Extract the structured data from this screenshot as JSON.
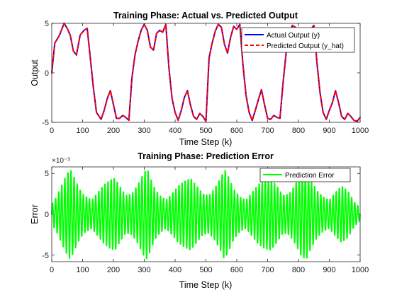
{
  "chart_data": [
    {
      "type": "line",
      "title": "Training Phase: Actual vs. Predicted Output",
      "xlabel": "Time Step (k)",
      "ylabel": "Output",
      "xlim": [
        0,
        1000
      ],
      "ylim": [
        -5,
        5
      ],
      "xticks": [
        "0",
        "100",
        "200",
        "300",
        "400",
        "500",
        "600",
        "700",
        "800",
        "900",
        "1000"
      ],
      "yticks": [
        "5",
        "0",
        "-5"
      ],
      "legend_position": "top-right",
      "grid": false,
      "x": [
        0,
        10,
        25,
        40,
        50,
        60,
        70,
        80,
        92,
        105,
        115,
        125,
        135,
        145,
        160,
        170,
        180,
        190,
        200,
        210,
        220,
        230,
        240,
        250,
        260,
        270,
        280,
        290,
        300,
        310,
        320,
        330,
        340,
        350,
        360,
        370,
        380,
        390,
        400,
        410,
        420,
        430,
        440,
        450,
        460,
        470,
        480,
        490,
        500,
        510,
        520,
        530,
        540,
        550,
        560,
        570,
        580,
        590,
        600,
        610,
        620,
        630,
        640,
        650,
        660,
        670,
        680,
        690,
        700,
        710,
        720,
        730,
        740,
        750,
        760,
        770,
        780,
        790,
        800,
        810,
        820,
        830,
        840,
        850,
        860,
        870,
        880,
        890,
        900,
        910,
        920,
        930,
        940,
        950,
        960,
        970,
        980,
        990,
        1000
      ],
      "series": [
        {
          "name": "Actual Output (y)",
          "color": "#0000ff",
          "style": "solid",
          "values": [
            0,
            3,
            3.8,
            5,
            4.5,
            3.8,
            2.2,
            1.8,
            3.8,
            4.3,
            4.5,
            1.5,
            -1.5,
            -4,
            -4.7,
            -3.8,
            -2.6,
            -1.8,
            -3.2,
            -4.6,
            -4.6,
            -4.3,
            -4.5,
            -4.8,
            -0.5,
            1.8,
            3.2,
            4.3,
            4.9,
            4.3,
            2.6,
            2.3,
            4.0,
            4.3,
            4.1,
            4.9,
            0.5,
            -2.6,
            -4,
            -4.8,
            -3.8,
            -2.5,
            -1.8,
            -3.3,
            -4.4,
            -4.7,
            -4.1,
            -4.4,
            -4.9,
            1.5,
            3.0,
            4.2,
            4.9,
            4.6,
            2.9,
            2.0,
            3.6,
            4.7,
            4.4,
            4.9,
            0.8,
            -2.3,
            -4,
            -4.8,
            -3.8,
            -2.7,
            -1.7,
            -3.2,
            -4.6,
            -4.7,
            -4.3,
            -4.5,
            -4.6,
            -1.0,
            2.0,
            3.5,
            4.8,
            4.6,
            2.8,
            2.3,
            3.6,
            4.3,
            4.4,
            4.8,
            1.0,
            -2.0,
            -4,
            -4.7,
            -3.8,
            -3.0,
            -1.8,
            -3.0,
            -4.4,
            -4.7,
            -4.1,
            -4.4,
            -4.8,
            -4.9,
            -4.5
          ]
        },
        {
          "name": "Predicted Output (y_hat)",
          "color": "#ff0000",
          "style": "dashed",
          "values": [
            0,
            3,
            3.8,
            5,
            4.5,
            3.8,
            2.2,
            1.8,
            3.8,
            4.3,
            4.5,
            1.5,
            -1.5,
            -4,
            -4.7,
            -3.8,
            -2.6,
            -1.8,
            -3.2,
            -4.6,
            -4.6,
            -4.3,
            -4.5,
            -4.8,
            -0.5,
            1.8,
            3.2,
            4.3,
            4.9,
            4.3,
            2.6,
            2.3,
            4.0,
            4.3,
            4.1,
            4.9,
            0.5,
            -2.6,
            -4,
            -4.8,
            -3.8,
            -2.5,
            -1.8,
            -3.3,
            -4.4,
            -4.7,
            -4.1,
            -4.4,
            -4.9,
            1.5,
            3.0,
            4.2,
            4.9,
            4.6,
            2.9,
            2.0,
            3.6,
            4.7,
            4.4,
            4.9,
            0.8,
            -2.3,
            -4,
            -4.8,
            -3.8,
            -2.7,
            -1.7,
            -3.2,
            -4.6,
            -4.7,
            -4.3,
            -4.5,
            -4.6,
            -1.0,
            2.0,
            3.5,
            4.8,
            4.6,
            2.8,
            2.3,
            3.6,
            4.3,
            4.4,
            4.8,
            1.0,
            -2.0,
            -4,
            -4.7,
            -3.8,
            -3.0,
            -1.8,
            -3.0,
            -4.4,
            -4.7,
            -4.1,
            -4.4,
            -4.8,
            -4.9,
            -4.5
          ]
        }
      ]
    },
    {
      "type": "line",
      "title": "Training Phase: Prediction Error",
      "xlabel": "Time Step (k)",
      "ylabel": "Error",
      "xlim": [
        0,
        1000
      ],
      "ylim": [
        -0.0058,
        0.0058
      ],
      "exponent_label": "×10⁻³",
      "xticks": [
        "0",
        "100",
        "200",
        "300",
        "400",
        "500",
        "600",
        "700",
        "800",
        "900",
        "1000"
      ],
      "yticks": [
        "5",
        "0",
        "-5"
      ],
      "legend_position": "top-right",
      "grid": false,
      "series": [
        {
          "name": "Prediction Error",
          "color": "#00ff00",
          "style": "solid",
          "oscillation_period_steps": 10,
          "envelope_x": [
            0,
            15,
            30,
            45,
            60,
            75,
            90,
            105,
            130,
            150,
            170,
            190,
            205,
            220,
            240,
            260,
            280,
            300,
            310,
            320,
            335,
            350,
            370,
            390,
            410,
            430,
            450,
            470,
            490,
            510,
            530,
            550,
            560,
            575,
            590,
            610,
            630,
            650,
            670,
            690,
            710,
            730,
            750,
            770,
            790,
            810,
            825,
            840,
            860,
            880,
            900,
            920,
            940,
            960,
            980,
            1000
          ],
          "envelope_amp": [
            0.0012,
            0.0022,
            0.0035,
            0.0048,
            0.0058,
            0.0045,
            0.0032,
            0.0024,
            0.0018,
            0.0028,
            0.0038,
            0.0044,
            0.0046,
            0.0036,
            0.0024,
            0.0026,
            0.0038,
            0.0054,
            0.0058,
            0.0046,
            0.0032,
            0.0024,
            0.0018,
            0.0026,
            0.0036,
            0.0042,
            0.0046,
            0.0036,
            0.0026,
            0.0024,
            0.0034,
            0.0048,
            0.0058,
            0.0046,
            0.0032,
            0.0022,
            0.0018,
            0.0028,
            0.0038,
            0.0044,
            0.0046,
            0.0036,
            0.0024,
            0.0026,
            0.0038,
            0.0054,
            0.0058,
            0.0044,
            0.003,
            0.0022,
            0.0018,
            0.0028,
            0.0036,
            0.003,
            0.0016,
            0.0008
          ]
        }
      ]
    }
  ]
}
